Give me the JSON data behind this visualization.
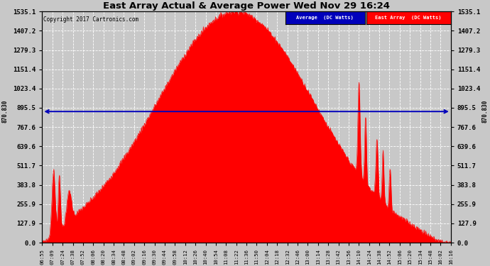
{
  "title": "East Array Actual & Average Power Wed Nov 29 16:24",
  "copyright": "Copyright 2017 Cartronics.com",
  "avg_label": "Average  (DC Watts)",
  "east_label": "East Array  (DC Watts)",
  "avg_value": 870.83,
  "ylim": [
    0.0,
    1535.1
  ],
  "yticks": [
    0.0,
    127.9,
    255.9,
    383.8,
    511.7,
    639.6,
    767.6,
    895.5,
    1023.4,
    1151.4,
    1279.3,
    1407.2,
    1535.1
  ],
  "background_color": "#c8c8c8",
  "plot_bg_color": "#c8c8c8",
  "fill_color": "#ff0000",
  "avg_line_color": "#0000bb",
  "grid_color": "#ffffff",
  "title_color": "#000000",
  "xtick_labels": [
    "06:55",
    "07:09",
    "07:24",
    "07:38",
    "07:52",
    "08:06",
    "08:20",
    "08:34",
    "08:48",
    "09:02",
    "09:16",
    "09:30",
    "09:44",
    "09:58",
    "10:12",
    "10:26",
    "10:40",
    "10:54",
    "11:08",
    "11:22",
    "11:36",
    "11:50",
    "12:04",
    "12:18",
    "12:32",
    "12:46",
    "13:00",
    "13:14",
    "13:28",
    "13:42",
    "13:56",
    "14:10",
    "14:24",
    "14:38",
    "14:52",
    "15:06",
    "15:20",
    "15:34",
    "15:48",
    "16:02",
    "16:16"
  ],
  "num_points": 41,
  "peak_value": 1535.1
}
